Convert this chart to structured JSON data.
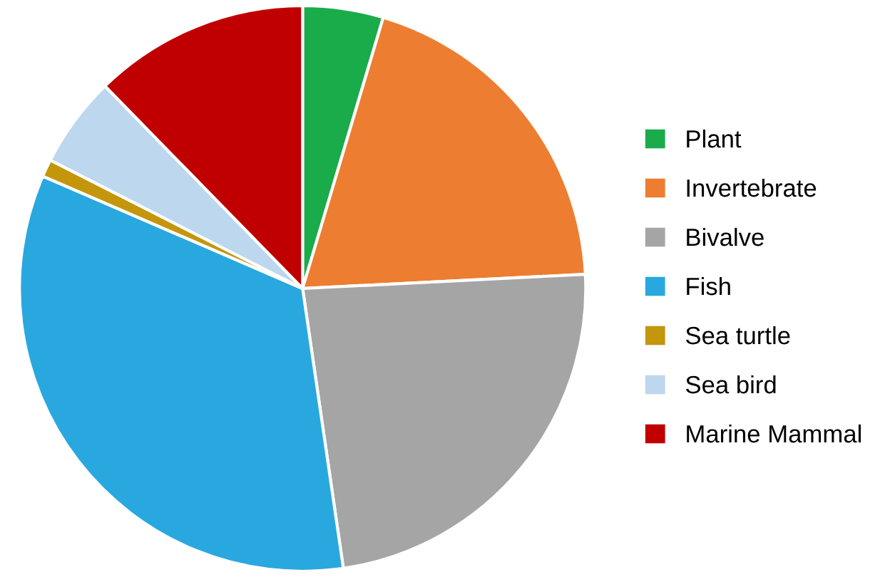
{
  "chart_data": {
    "type": "pie",
    "categories": [
      "Plant",
      "Invertebrate",
      "Bivalve",
      "Fish",
      "Sea turtle",
      "Sea bird",
      "Marine Mammal"
    ],
    "values": [
      4.6,
      19.6,
      23.5,
      33.8,
      1.0,
      5.2,
      12.3
    ],
    "colors": [
      "#1aab4b",
      "#ed7d31",
      "#a5a5a5",
      "#29a8e0",
      "#c4960c",
      "#bdd7ee",
      "#c00000"
    ],
    "legend": "right"
  }
}
